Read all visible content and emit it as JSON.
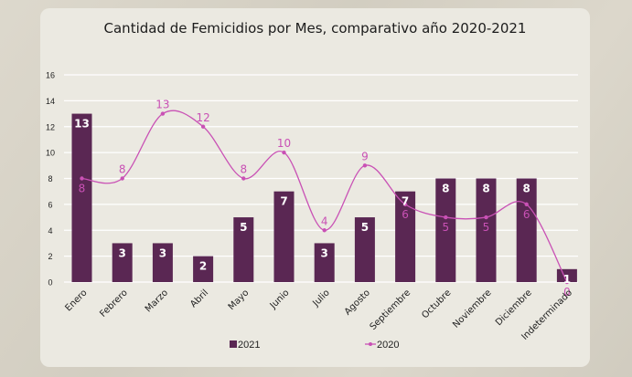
{
  "chart_data": {
    "type": "bar",
    "title": "Cantidad de Femicidios por Mes, comparativo año 2020-2021",
    "xlabel": "",
    "ylabel": "",
    "ylim": [
      0,
      16
    ],
    "yticks": [
      0,
      2,
      4,
      6,
      8,
      10,
      12,
      14,
      16
    ],
    "grid": true,
    "legend_position": "bottom",
    "categories": [
      "Enero",
      "Febrero",
      "Marzo",
      "Abril",
      "Mayo",
      "Junio",
      "Julio",
      "Agosto",
      "Septiembre",
      "Octubre",
      "Noviembre",
      "Diciembre",
      "Indeterminado"
    ],
    "series": [
      {
        "name": "2021",
        "type": "bar",
        "color": "#5a2753",
        "values": [
          13,
          3,
          3,
          2,
          5,
          7,
          3,
          5,
          7,
          8,
          8,
          8,
          1
        ]
      },
      {
        "name": "2020",
        "type": "line",
        "color": "#c951b5",
        "values": [
          8,
          8,
          13,
          12,
          8,
          10,
          4,
          9,
          6,
          5,
          5,
          6,
          0
        ]
      }
    ]
  }
}
